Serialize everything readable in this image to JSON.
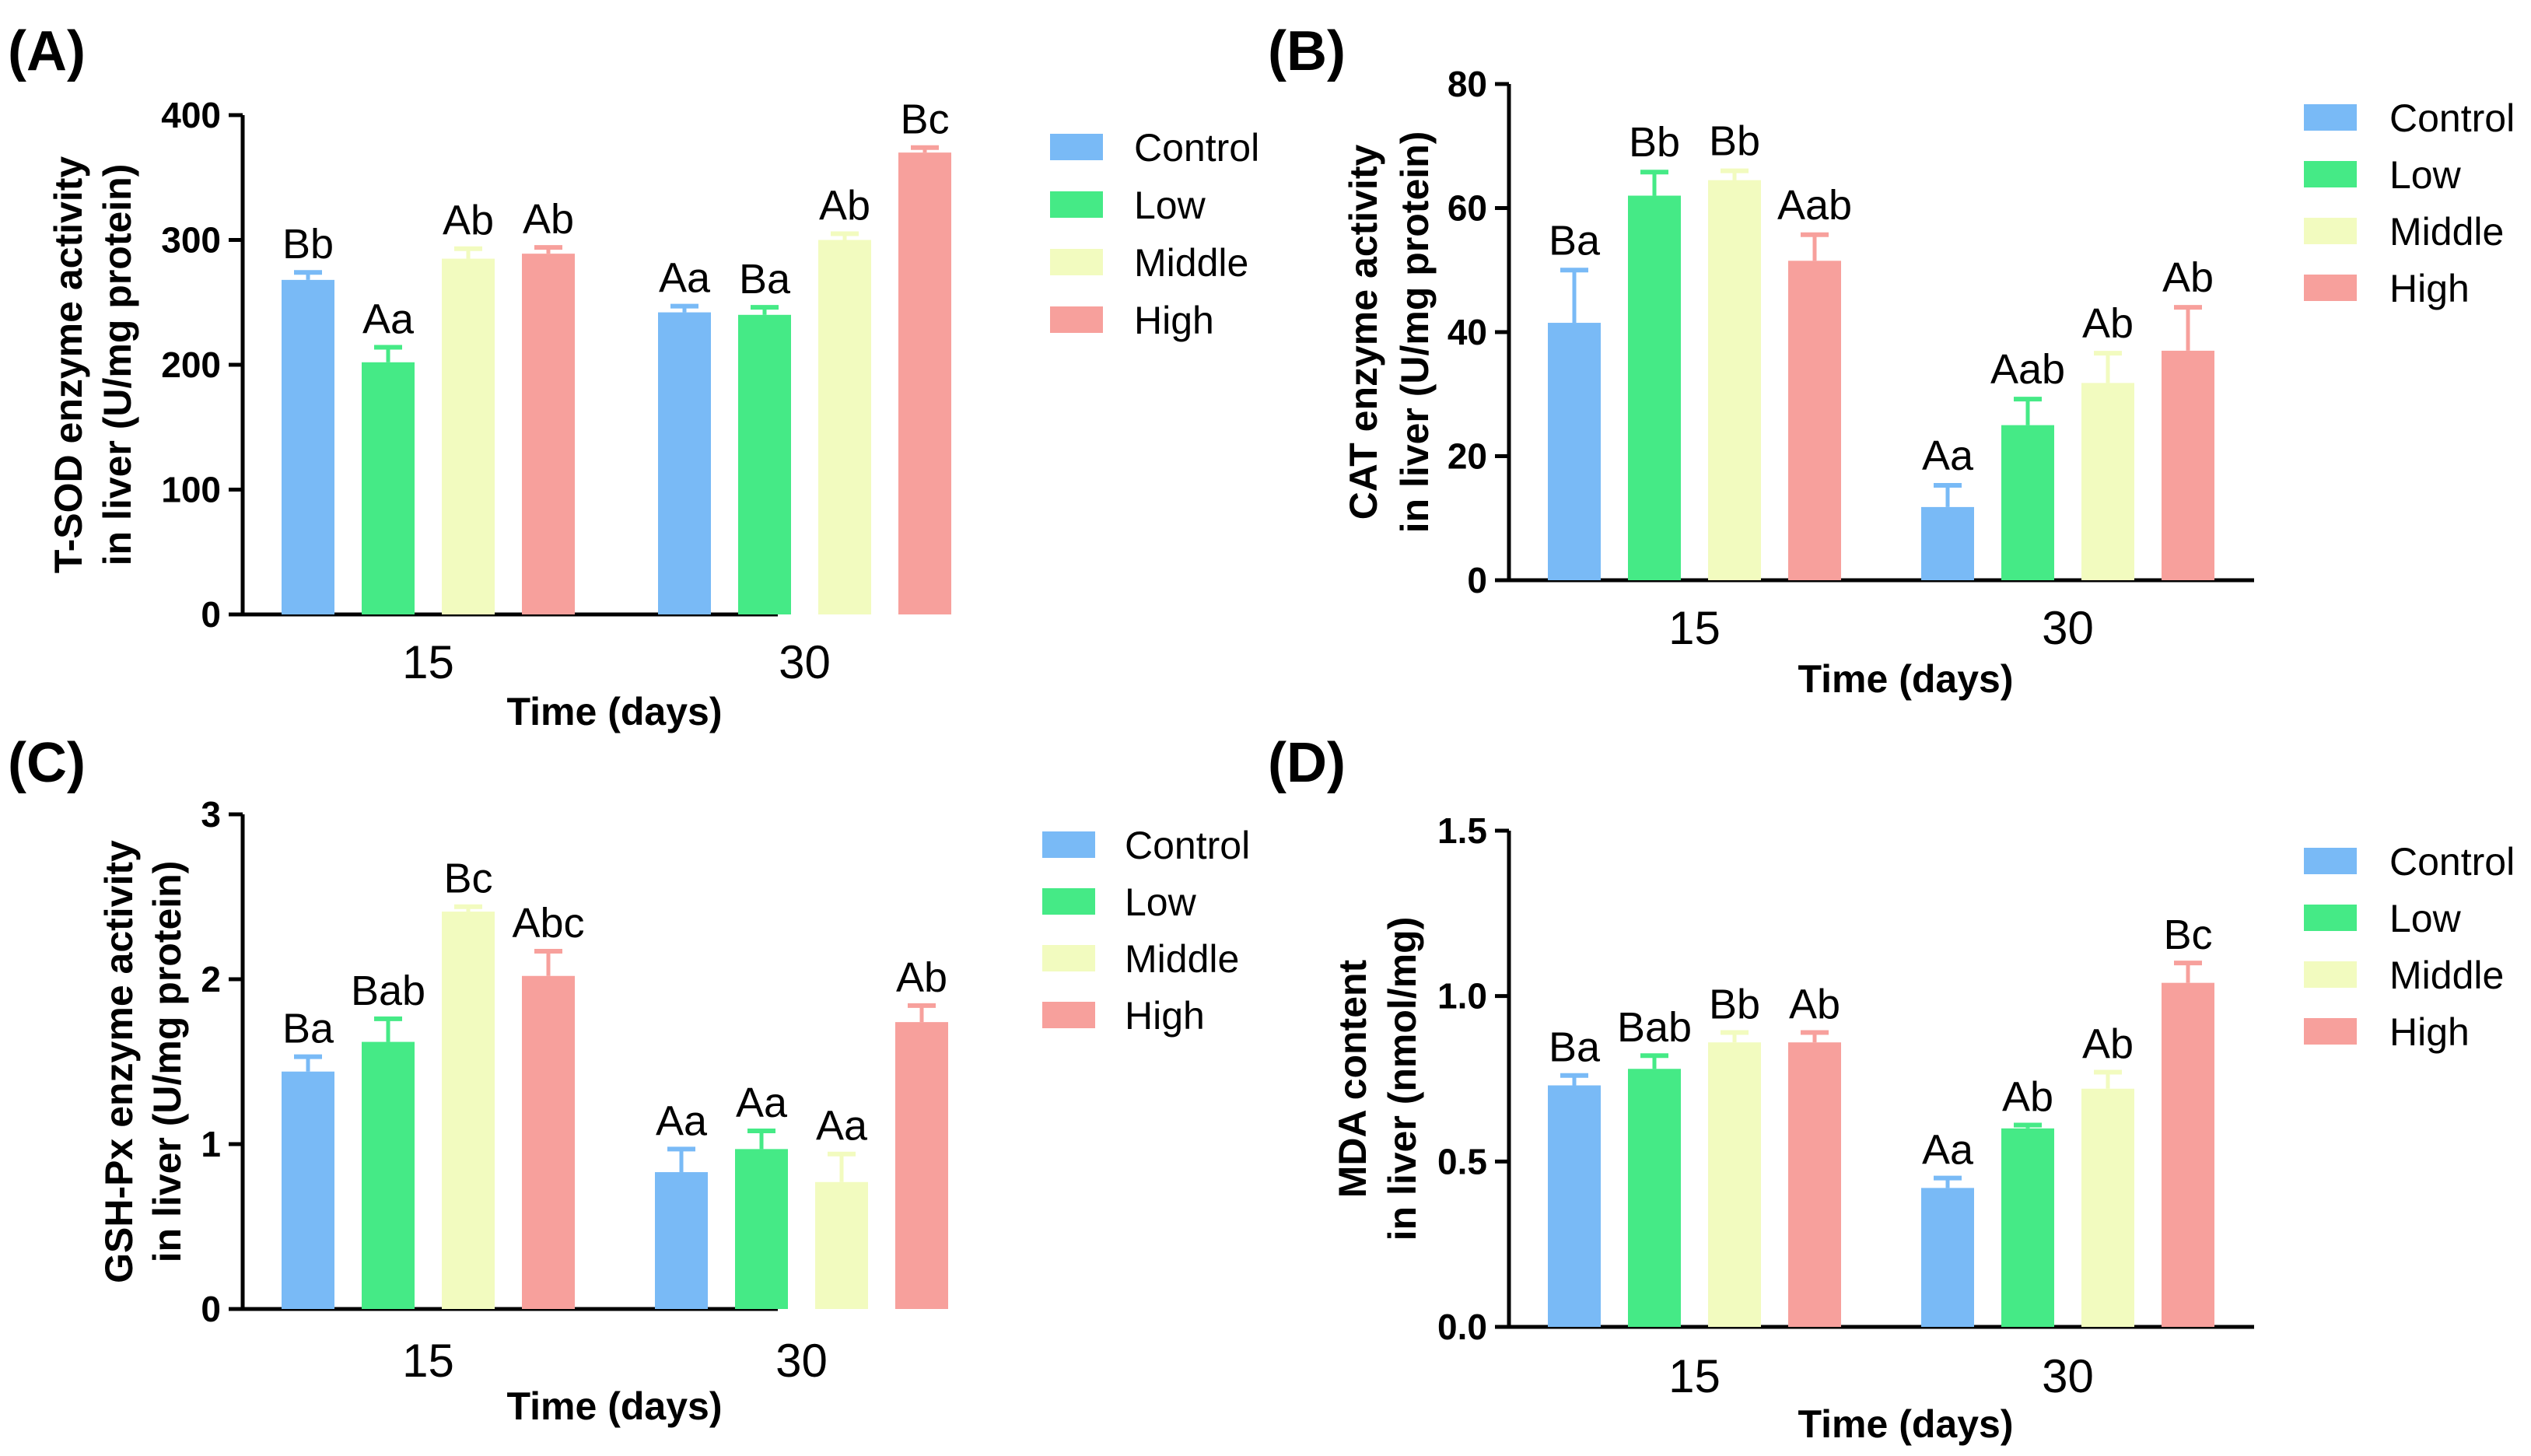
{
  "colors": {
    "Control": "#79baf6",
    "Low": "#45ea86",
    "Middle": "#f2fbbf",
    "High": "#f7a09c"
  },
  "chart_data": [
    {
      "type": "bar",
      "panel": "(A)",
      "categories": [
        "15",
        "30"
      ],
      "series": [
        {
          "name": "Control",
          "values": [
            268,
            242
          ],
          "errors": [
            6,
            5
          ],
          "letters": [
            "Bb",
            "Aa"
          ]
        },
        {
          "name": "Low",
          "values": [
            202,
            240
          ],
          "errors": [
            12,
            6
          ],
          "letters": [
            "Aa",
            "Ba"
          ]
        },
        {
          "name": "Middle",
          "values": [
            285,
            300
          ],
          "errors": [
            8,
            5
          ],
          "letters": [
            "Ab",
            "Ab"
          ]
        },
        {
          "name": "High",
          "values": [
            289,
            370
          ],
          "errors": [
            5,
            4
          ],
          "letters": [
            "Ab",
            "Bc"
          ]
        }
      ],
      "ylim": [
        0,
        400
      ],
      "yticks": [
        "0",
        "100",
        "200",
        "300",
        "400"
      ],
      "ylabel_line1": "T-SOD enzyme activity",
      "ylabel_line2": "in liver (U/mg protein)",
      "xlabel": "Time (days)",
      "legend": [
        "Control",
        "Low",
        "Middle",
        "High"
      ]
    },
    {
      "type": "bar",
      "panel": "(B)",
      "categories": [
        "15",
        "30"
      ],
      "series": [
        {
          "name": "Control",
          "values": [
            41.5,
            11.8
          ],
          "errors": [
            8.5,
            3.5
          ],
          "letters": [
            "Ba",
            "Aa"
          ]
        },
        {
          "name": "Low",
          "values": [
            62,
            25
          ],
          "errors": [
            3.8,
            4.2
          ],
          "letters": [
            "Bb",
            "Aab"
          ]
        },
        {
          "name": "Middle",
          "values": [
            64.5,
            31.8
          ],
          "errors": [
            1.5,
            4.8
          ],
          "letters": [
            "Bb",
            "Ab"
          ]
        },
        {
          "name": "High",
          "values": [
            51.5,
            37
          ],
          "errors": [
            4.2,
            7
          ],
          "letters": [
            "Aab",
            "Ab"
          ]
        }
      ],
      "ylim": [
        0,
        80
      ],
      "yticks": [
        "0",
        "20",
        "40",
        "60",
        "80"
      ],
      "ylabel_line1": "CAT enzyme activity",
      "ylabel_line2": "in liver (U/mg protein)",
      "xlabel": "Time (days)",
      "legend": [
        "Control",
        "Low",
        "Middle",
        "High"
      ]
    },
    {
      "type": "bar",
      "panel": "(C)",
      "categories": [
        "15",
        "30"
      ],
      "series": [
        {
          "name": "Control",
          "values": [
            1.44,
            0.83
          ],
          "errors": [
            0.09,
            0.14
          ],
          "letters": [
            "Ba",
            "Aa"
          ]
        },
        {
          "name": "Low",
          "values": [
            1.62,
            0.97
          ],
          "errors": [
            0.14,
            0.11
          ],
          "letters": [
            "Bab",
            "Aa"
          ]
        },
        {
          "name": "Middle",
          "values": [
            2.41,
            0.77
          ],
          "errors": [
            0.03,
            0.17
          ],
          "letters": [
            "Bc",
            "Aa"
          ]
        },
        {
          "name": "High",
          "values": [
            2.02,
            1.74
          ],
          "errors": [
            0.15,
            0.1
          ],
          "letters": [
            "Abc",
            "Ab"
          ]
        }
      ],
      "ylim": [
        0,
        3
      ],
      "yticks": [
        "0",
        "1",
        "2",
        "3"
      ],
      "ylabel_line1": "GSH-Px enzyme activity",
      "ylabel_line2": "in liver (U/mg protein)",
      "xlabel": "Time (days)",
      "legend": [
        "Control",
        "Low",
        "Middle",
        "High"
      ]
    },
    {
      "type": "bar",
      "panel": "(D)",
      "categories": [
        "15",
        "30"
      ],
      "series": [
        {
          "name": "Control",
          "values": [
            0.73,
            0.42
          ],
          "errors": [
            0.03,
            0.03
          ],
          "letters": [
            "Ba",
            "Aa"
          ]
        },
        {
          "name": "Low",
          "values": [
            0.78,
            0.6
          ],
          "errors": [
            0.04,
            0.01
          ],
          "letters": [
            "Bab",
            "Ab"
          ]
        },
        {
          "name": "Middle",
          "values": [
            0.86,
            0.72
          ],
          "errors": [
            0.03,
            0.05
          ],
          "letters": [
            "Bb",
            "Ab"
          ]
        },
        {
          "name": "High",
          "values": [
            0.86,
            1.04
          ],
          "errors": [
            0.03,
            0.06
          ],
          "letters": [
            "Ab",
            "Bc"
          ]
        }
      ],
      "ylim": [
        0,
        1.5
      ],
      "yticks": [
        "0.0",
        "0.5",
        "1.0",
        "1.5"
      ],
      "ylabel_line1": "MDA  content",
      "ylabel_line2": "in liver (nmol/mg)",
      "xlabel": "Time (days)",
      "legend": [
        "Control",
        "Low",
        "Middle",
        "High"
      ]
    }
  ]
}
